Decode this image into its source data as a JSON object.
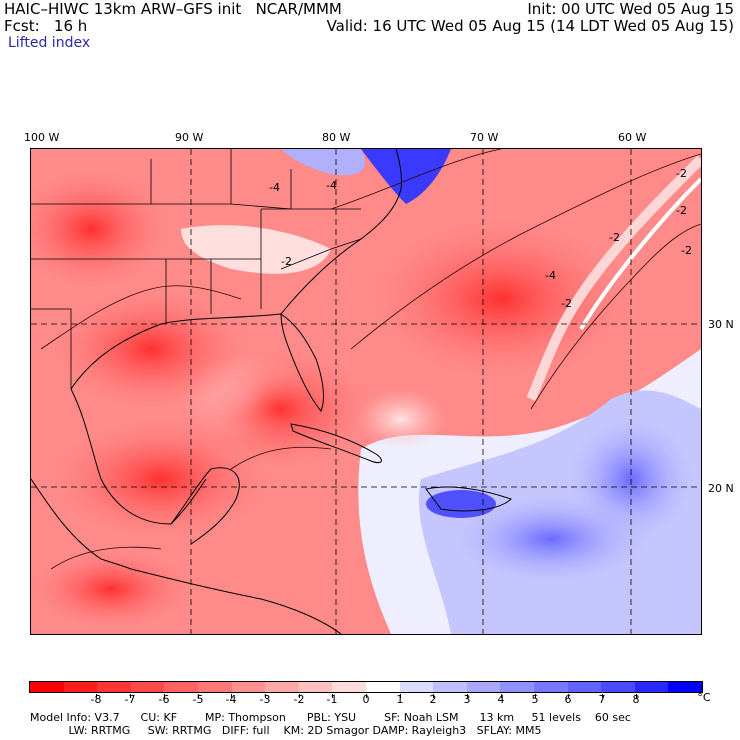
{
  "header": {
    "title_left": "HAIC–HIWC 13km ARW–GFS init   NCAR/MMM",
    "title_right": "Init: 00 UTC Wed 05 Aug 15",
    "forecast_left": "Fcst:   16 h",
    "valid_right": "Valid: 16 UTC Wed 05 Aug 15 (14 LDT Wed 05 Aug 15)",
    "field_name": "Lifted index"
  },
  "map": {
    "longitude_labels": [
      "100 W",
      "90 W",
      "80 W",
      "70 W",
      "60 W"
    ],
    "latitude_labels": [
      "30 N",
      "20 N"
    ],
    "contour_labels": [
      "-2",
      "-2",
      "-2",
      "-2",
      "-2",
      "-4",
      "-2",
      "-4",
      "-4"
    ],
    "colors": {
      "strong_unstable": "#ff0000",
      "unstable": "#ff5a5a",
      "mild_unstable": "#ff9090",
      "weak_unstable": "#ffc8c8",
      "neutral": "#ffffff",
      "weak_stable": "#c8c8ff",
      "stable": "#8c8cff",
      "strong_stable": "#0000ff"
    }
  },
  "colorbar": {
    "colors": [
      "#ff0000",
      "#ff1e1e",
      "#ff3434",
      "#ff4a4a",
      "#ff6262",
      "#ff7878",
      "#ff9090",
      "#ffa8a8",
      "#ffc0c0",
      "#ffdcdc",
      "#ffffff",
      "#dcdcff",
      "#c0c0ff",
      "#a8a8ff",
      "#9090ff",
      "#7878ff",
      "#6262ff",
      "#4a4aff",
      "#2828ff",
      "#0000ff"
    ],
    "labels": [
      "-8",
      "-7",
      "-6",
      "-5",
      "-4",
      "-3",
      "-2",
      "-1",
      "0",
      "1",
      "2",
      "3",
      "4",
      "5",
      "6",
      "7",
      "8"
    ],
    "unit": "°C"
  },
  "footer": {
    "line1": "Model Info: V3.7      CU: KF        MP: Thompson      PBL: YSU        SF: Noah LSM      13 km     51 levels    60 sec",
    "line2": "           LW: RRTMG     SW: RRTMG   DIFF: full    KM: 2D Smagor DAMP: Rayleigh3   SFLAY: MM5"
  }
}
